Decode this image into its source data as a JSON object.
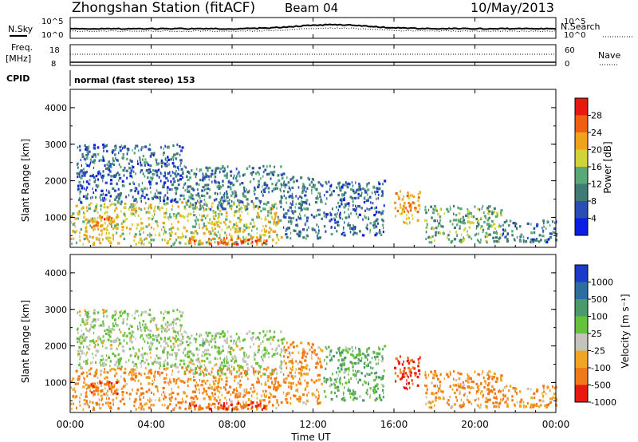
{
  "header": {
    "station": "Zhongshan Station (fitACF)",
    "beam": "Beam 04",
    "date": "10/May/2013"
  },
  "cpid_label": "CPID",
  "cpid_text": "normal (fast stereo) 153",
  "summary": {
    "nsky_label": "N.Sky",
    "nsearch_label": "N.Search",
    "freq_label": "Freq.",
    "freq_unit": "[MHz]",
    "nave_label": "Nave",
    "noise_ticks": [
      "10^5",
      "10^0"
    ],
    "freq_ticks": [
      "18",
      "8"
    ],
    "nave_ticks": [
      "60",
      "0"
    ]
  },
  "time_axis": {
    "label": "Time UT",
    "ticks": [
      "00:00",
      "04:00",
      "08:00",
      "12:00",
      "16:00",
      "20:00",
      "00:00"
    ]
  },
  "range_axis": {
    "label": "Slant Range [km]",
    "ticks": [
      "1000",
      "2000",
      "3000",
      "4000"
    ]
  },
  "power_scale": {
    "label": "Power [dB]",
    "ticks": [
      "4",
      "8",
      "12",
      "16",
      "20",
      "24",
      "28"
    ],
    "colors": [
      "#0a1ee6",
      "#2a4fb4",
      "#3f7a74",
      "#58a87a",
      "#d2d23a",
      "#f0a21a",
      "#f06010",
      "#e81a10"
    ]
  },
  "velocity_scale": {
    "label": "Velocity [m s⁻¹]",
    "ticks": [
      "1000",
      "500",
      "100",
      "25",
      "-25",
      "-100",
      "-500",
      "-1000"
    ],
    "colors": [
      "#1a3cc8",
      "#2d6ea0",
      "#4c9a6a",
      "#66c23c",
      "#c4c4bc",
      "#f0a622",
      "#f07a1a",
      "#e81a10"
    ]
  },
  "chart_data": {
    "type": "heatmap",
    "x_range_hours": [
      0,
      24
    ],
    "y_range_km": [
      180,
      4500
    ],
    "panels": [
      "power",
      "velocity"
    ],
    "scatter_regions": [
      {
        "t0": 0.0,
        "t1": 10.4,
        "r0": 250,
        "r1": 1400,
        "power_db": 18,
        "velocity": -100
      },
      {
        "t0": 0.3,
        "t1": 5.5,
        "r0": 1400,
        "r1": 3000,
        "power_db": 8,
        "velocity": 25
      },
      {
        "t0": 1.0,
        "t1": 2.3,
        "r0": 650,
        "r1": 1000,
        "power_db": 26,
        "velocity": -500
      },
      {
        "t0": 5.8,
        "t1": 9.7,
        "r0": 250,
        "r1": 450,
        "power_db": 27,
        "velocity": -500
      },
      {
        "t0": 5.5,
        "t1": 10.5,
        "r0": 1200,
        "r1": 2400,
        "power_db": 10,
        "velocity": 25
      },
      {
        "t0": 10.5,
        "t1": 12.4,
        "r0": 400,
        "r1": 2100,
        "power_db": 10,
        "velocity": -100
      },
      {
        "t0": 12.5,
        "t1": 15.5,
        "r0": 500,
        "r1": 2000,
        "power_db": 8,
        "velocity": 100
      },
      {
        "t0": 16.0,
        "t1": 17.3,
        "r0": 800,
        "r1": 1700,
        "power_db": 22,
        "velocity": -500
      },
      {
        "t0": 17.5,
        "t1": 21.3,
        "r0": 300,
        "r1": 1300,
        "power_db": 14,
        "velocity": -100
      },
      {
        "t0": 21.3,
        "t1": 24.0,
        "r0": 300,
        "r1": 900,
        "power_db": 9,
        "velocity": -100
      }
    ]
  }
}
